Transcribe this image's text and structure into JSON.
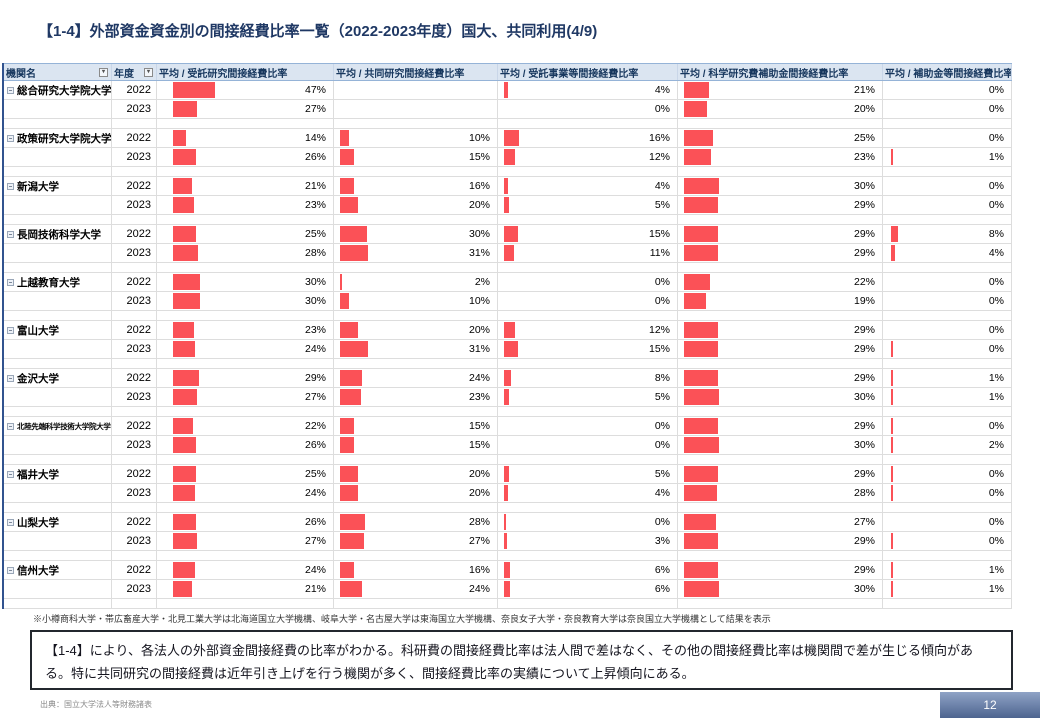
{
  "slide": {
    "title": "【1-4】外部資金資金別の間接経費比率一覧（2022-2023年度）国大、共同利用(4/9)",
    "footnote": "※小樽商科大学・帯広畜産大学・北見工業大学は北海道国立大学機構、岐阜大学・名古屋大学は東海国立大学機構、奈良女子大学・奈良教育大学は奈良国立大学機構として結果を表示",
    "summary": "【1-4】により、各法人の外部資金間接経費の比率がわかる。科研費の間接経費比率は法人間で差はなく、その他の間接経費比率は機関間で差が生じる傾向がある。特に共同研究の間接経費は近年引き上げを行う機関が多く、間接経費比率の実績について上昇傾向にある。",
    "source": "出典：国立大学法人等財務諸表",
    "page_number": "12"
  },
  "colors": {
    "bar": "#FB5157",
    "header_bg": "#DBE5F1",
    "header_border": "#95B3D7",
    "gridline": "#DDDDDD",
    "title_text": "#1F3864",
    "page_box_top": "#8FA3C6",
    "page_box_bottom": "#4D648F"
  },
  "table": {
    "headers": [
      "機関名",
      "年度",
      "平均 / 受託研究間接経費比率",
      "平均 / 共同研究間接経費比率",
      "平均 / 受託事業等間接経費比率",
      "平均 / 科学研究費補助金間接経費比率",
      "平均 / 補助金等間接経費比率"
    ],
    "rows": [
      {
        "name": "総合研究大学院大学",
        "years": [
          {
            "year": "2022",
            "values": [
              {
                "t": "47%",
                "b": 47
              },
              {
                "t": "",
                "b": 0
              },
              {
                "t": "4%",
                "b": 4
              },
              {
                "t": "21%",
                "b": 21
              },
              {
                "t": "0%",
                "b": 0
              }
            ]
          },
          {
            "year": "2023",
            "values": [
              {
                "t": "27%",
                "b": 27
              },
              {
                "t": "",
                "b": 0
              },
              {
                "t": "0%",
                "b": 0
              },
              {
                "t": "20%",
                "b": 20
              },
              {
                "t": "0%",
                "b": 0
              }
            ]
          }
        ]
      },
      {
        "name": "政策研究大学院大学",
        "years": [
          {
            "year": "2022",
            "values": [
              {
                "t": "14%",
                "b": 14
              },
              {
                "t": "10%",
                "b": 10
              },
              {
                "t": "16%",
                "b": 16
              },
              {
                "t": "25%",
                "b": 25
              },
              {
                "t": "0%",
                "b": 0
              }
            ]
          },
          {
            "year": "2023",
            "values": [
              {
                "t": "26%",
                "b": 26
              },
              {
                "t": "15%",
                "b": 15
              },
              {
                "t": "12%",
                "b": 12
              },
              {
                "t": "23%",
                "b": 23
              },
              {
                "t": "1%",
                "b": 1
              }
            ]
          }
        ]
      },
      {
        "name": "新潟大学",
        "years": [
          {
            "year": "2022",
            "values": [
              {
                "t": "21%",
                "b": 21
              },
              {
                "t": "16%",
                "b": 16
              },
              {
                "t": "4%",
                "b": 4
              },
              {
                "t": "30%",
                "b": 30
              },
              {
                "t": "0%",
                "b": 0
              }
            ]
          },
          {
            "year": "2023",
            "values": [
              {
                "t": "23%",
                "b": 23
              },
              {
                "t": "20%",
                "b": 20
              },
              {
                "t": "5%",
                "b": 5
              },
              {
                "t": "29%",
                "b": 29
              },
              {
                "t": "0%",
                "b": 0
              }
            ]
          }
        ]
      },
      {
        "name": "長岡技術科学大学",
        "years": [
          {
            "year": "2022",
            "values": [
              {
                "t": "25%",
                "b": 25
              },
              {
                "t": "30%",
                "b": 30
              },
              {
                "t": "15%",
                "b": 15
              },
              {
                "t": "29%",
                "b": 29
              },
              {
                "t": "8%",
                "b": 8
              }
            ]
          },
          {
            "year": "2023",
            "values": [
              {
                "t": "28%",
                "b": 28
              },
              {
                "t": "31%",
                "b": 31
              },
              {
                "t": "11%",
                "b": 11
              },
              {
                "t": "29%",
                "b": 29
              },
              {
                "t": "4%",
                "b": 4
              }
            ]
          }
        ]
      },
      {
        "name": "上越教育大学",
        "years": [
          {
            "year": "2022",
            "values": [
              {
                "t": "30%",
                "b": 30
              },
              {
                "t": "2%",
                "b": 2
              },
              {
                "t": "0%",
                "b": 0
              },
              {
                "t": "22%",
                "b": 22
              },
              {
                "t": "0%",
                "b": 0
              }
            ]
          },
          {
            "year": "2023",
            "values": [
              {
                "t": "30%",
                "b": 30
              },
              {
                "t": "10%",
                "b": 10
              },
              {
                "t": "0%",
                "b": 0
              },
              {
                "t": "19%",
                "b": 19
              },
              {
                "t": "0%",
                "b": 0
              }
            ]
          }
        ]
      },
      {
        "name": "富山大学",
        "years": [
          {
            "year": "2022",
            "values": [
              {
                "t": "23%",
                "b": 23
              },
              {
                "t": "20%",
                "b": 20
              },
              {
                "t": "12%",
                "b": 12
              },
              {
                "t": "29%",
                "b": 29
              },
              {
                "t": "0%",
                "b": 0
              }
            ]
          },
          {
            "year": "2023",
            "values": [
              {
                "t": "24%",
                "b": 24
              },
              {
                "t": "31%",
                "b": 31
              },
              {
                "t": "15%",
                "b": 15
              },
              {
                "t": "29%",
                "b": 29
              },
              {
                "t": "0%",
                "b": 0.3
              }
            ]
          }
        ]
      },
      {
        "name": "金沢大学",
        "years": [
          {
            "year": "2022",
            "values": [
              {
                "t": "29%",
                "b": 29
              },
              {
                "t": "24%",
                "b": 24
              },
              {
                "t": "8%",
                "b": 8
              },
              {
                "t": "29%",
                "b": 29
              },
              {
                "t": "1%",
                "b": 1
              }
            ]
          },
          {
            "year": "2023",
            "values": [
              {
                "t": "27%",
                "b": 27
              },
              {
                "t": "23%",
                "b": 23
              },
              {
                "t": "5%",
                "b": 5
              },
              {
                "t": "30%",
                "b": 30
              },
              {
                "t": "1%",
                "b": 1
              }
            ]
          }
        ]
      },
      {
        "name": "北陸先端科学技術大学院大学",
        "years": [
          {
            "year": "2022",
            "values": [
              {
                "t": "22%",
                "b": 22
              },
              {
                "t": "15%",
                "b": 15
              },
              {
                "t": "0%",
                "b": 0
              },
              {
                "t": "29%",
                "b": 29
              },
              {
                "t": "0%",
                "b": 0.3
              }
            ]
          },
          {
            "year": "2023",
            "values": [
              {
                "t": "26%",
                "b": 26
              },
              {
                "t": "15%",
                "b": 15
              },
              {
                "t": "0%",
                "b": 0
              },
              {
                "t": "30%",
                "b": 30
              },
              {
                "t": "2%",
                "b": 2
              }
            ]
          }
        ]
      },
      {
        "name": "福井大学",
        "years": [
          {
            "year": "2022",
            "values": [
              {
                "t": "25%",
                "b": 25
              },
              {
                "t": "20%",
                "b": 20
              },
              {
                "t": "5%",
                "b": 5
              },
              {
                "t": "29%",
                "b": 29
              },
              {
                "t": "0%",
                "b": 0.3
              }
            ]
          },
          {
            "year": "2023",
            "values": [
              {
                "t": "24%",
                "b": 24
              },
              {
                "t": "20%",
                "b": 20
              },
              {
                "t": "4%",
                "b": 4
              },
              {
                "t": "28%",
                "b": 28
              },
              {
                "t": "0%",
                "b": 0.3
              }
            ]
          }
        ]
      },
      {
        "name": "山梨大学",
        "years": [
          {
            "year": "2022",
            "values": [
              {
                "t": "26%",
                "b": 26
              },
              {
                "t": "28%",
                "b": 28
              },
              {
                "t": "0%",
                "b": 0.3
              },
              {
                "t": "27%",
                "b": 27
              },
              {
                "t": "0%",
                "b": 0
              }
            ]
          },
          {
            "year": "2023",
            "values": [
              {
                "t": "27%",
                "b": 27
              },
              {
                "t": "27%",
                "b": 27
              },
              {
                "t": "3%",
                "b": 3
              },
              {
                "t": "29%",
                "b": 29
              },
              {
                "t": "0%",
                "b": 0.3
              }
            ]
          }
        ]
      },
      {
        "name": "信州大学",
        "years": [
          {
            "year": "2022",
            "values": [
              {
                "t": "24%",
                "b": 24
              },
              {
                "t": "16%",
                "b": 16
              },
              {
                "t": "6%",
                "b": 6
              },
              {
                "t": "29%",
                "b": 29
              },
              {
                "t": "1%",
                "b": 1
              }
            ]
          },
          {
            "year": "2023",
            "values": [
              {
                "t": "21%",
                "b": 21
              },
              {
                "t": "24%",
                "b": 24
              },
              {
                "t": "6%",
                "b": 6
              },
              {
                "t": "30%",
                "b": 30
              },
              {
                "t": "1%",
                "b": 1
              }
            ]
          }
        ]
      }
    ]
  }
}
